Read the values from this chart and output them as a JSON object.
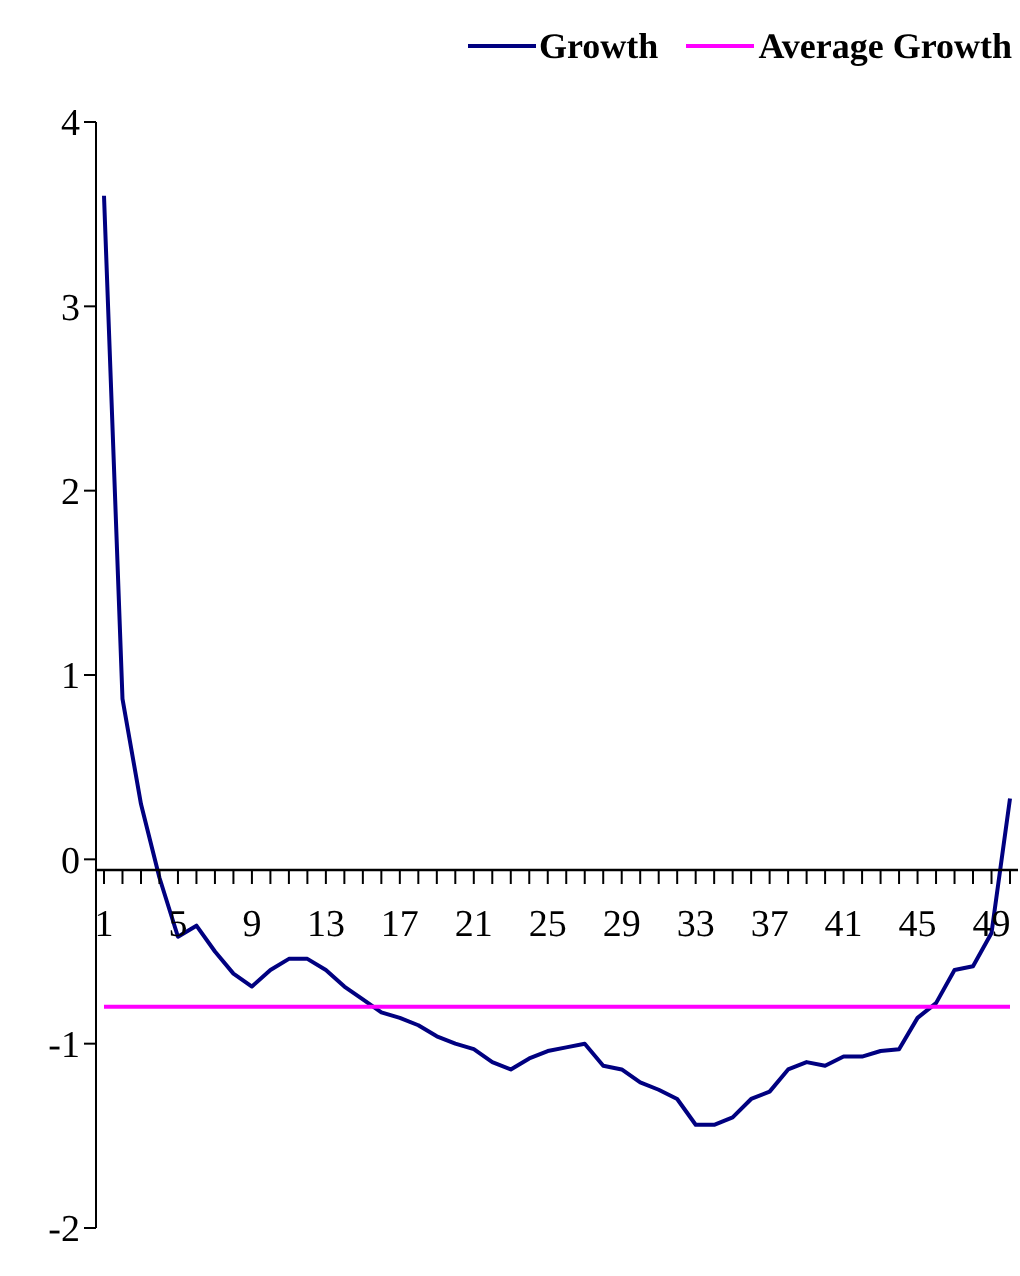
{
  "chart_data": {
    "type": "line",
    "categories": [
      "1",
      null,
      null,
      null,
      "5",
      null,
      null,
      null,
      "9",
      null,
      null,
      null,
      "13",
      null,
      null,
      null,
      "17",
      null,
      null,
      null,
      "21",
      null,
      null,
      null,
      "25",
      null,
      null,
      null,
      "29",
      null,
      null,
      null,
      "33",
      null,
      null,
      null,
      "37",
      null,
      null,
      null,
      "41",
      null,
      null,
      null,
      "45",
      null,
      null,
      null,
      "49",
      null
    ],
    "series": [
      {
        "name": "Growth",
        "color": "#000080",
        "values": [
          3.6,
          0.87,
          0.3,
          -0.1,
          -0.42,
          -0.36,
          -0.5,
          -0.62,
          -0.69,
          -0.6,
          -0.54,
          -0.54,
          -0.6,
          -0.69,
          -0.76,
          -0.83,
          -0.86,
          -0.9,
          -0.96,
          -1.0,
          -1.03,
          -1.1,
          -1.14,
          -1.08,
          -1.04,
          -1.02,
          -1.0,
          -1.12,
          -1.14,
          -1.21,
          -1.25,
          -1.3,
          -1.44,
          -1.44,
          -1.4,
          -1.3,
          -1.26,
          -1.14,
          -1.1,
          -1.12,
          -1.07,
          -1.07,
          -1.04,
          -1.03,
          -0.86,
          -0.78,
          -0.6,
          -0.58,
          -0.4,
          0.33
        ]
      },
      {
        "name": "Average Growth",
        "color": "#ff00ff",
        "values": [
          -0.8,
          -0.8,
          -0.8,
          -0.8,
          -0.8,
          -0.8,
          -0.8,
          -0.8,
          -0.8,
          -0.8,
          -0.8,
          -0.8,
          -0.8,
          -0.8,
          -0.8,
          -0.8,
          -0.8,
          -0.8,
          -0.8,
          -0.8,
          -0.8,
          -0.8,
          -0.8,
          -0.8,
          -0.8,
          -0.8,
          -0.8,
          -0.8,
          -0.8,
          -0.8,
          -0.8,
          -0.8,
          -0.8,
          -0.8,
          -0.8,
          -0.8,
          -0.8,
          -0.8,
          -0.8,
          -0.8,
          -0.8,
          -0.8,
          -0.8,
          -0.8,
          -0.8,
          -0.8,
          -0.8,
          -0.8,
          -0.8,
          -0.8
        ]
      }
    ],
    "ylim": [
      -2,
      4
    ],
    "yticks": [
      -2,
      -1,
      0,
      1,
      2,
      3,
      4
    ],
    "grid": false,
    "legend": "top",
    "marker": "none",
    "line_style": "solid"
  }
}
